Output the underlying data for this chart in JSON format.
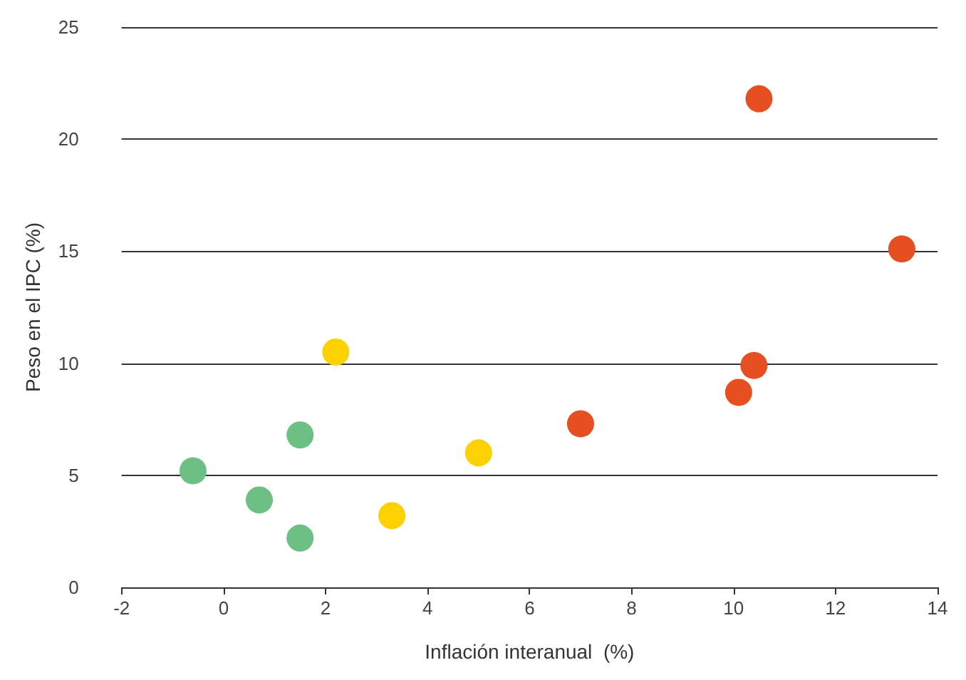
{
  "chart_data": {
    "type": "scatter",
    "xlabel": "Inflación interanual  (%)",
    "ylabel": "Peso en el IPC (%)",
    "xlim": [
      -2,
      14
    ],
    "xticks": [
      -2,
      0,
      2,
      4,
      6,
      8,
      10,
      12,
      14
    ],
    "ylim": [
      0,
      25
    ],
    "yticks": [
      0,
      5,
      10,
      15,
      20,
      25
    ],
    "grid": "y",
    "marker": "circle",
    "series": [
      {
        "color": "#6dbf84",
        "x": [
          -0.6,
          0.7,
          1.5,
          1.5
        ],
        "values": [
          5.2,
          3.9,
          6.8,
          2.2
        ]
      },
      {
        "color": "#fdd000",
        "x": [
          2.2,
          3.3,
          5.0
        ],
        "values": [
          10.5,
          3.2,
          6.0
        ]
      },
      {
        "color": "#e64f22",
        "x": [
          7.0,
          10.1,
          10.4,
          10.5,
          13.3
        ],
        "values": [
          7.3,
          8.7,
          9.9,
          21.8,
          15.1
        ]
      }
    ]
  }
}
